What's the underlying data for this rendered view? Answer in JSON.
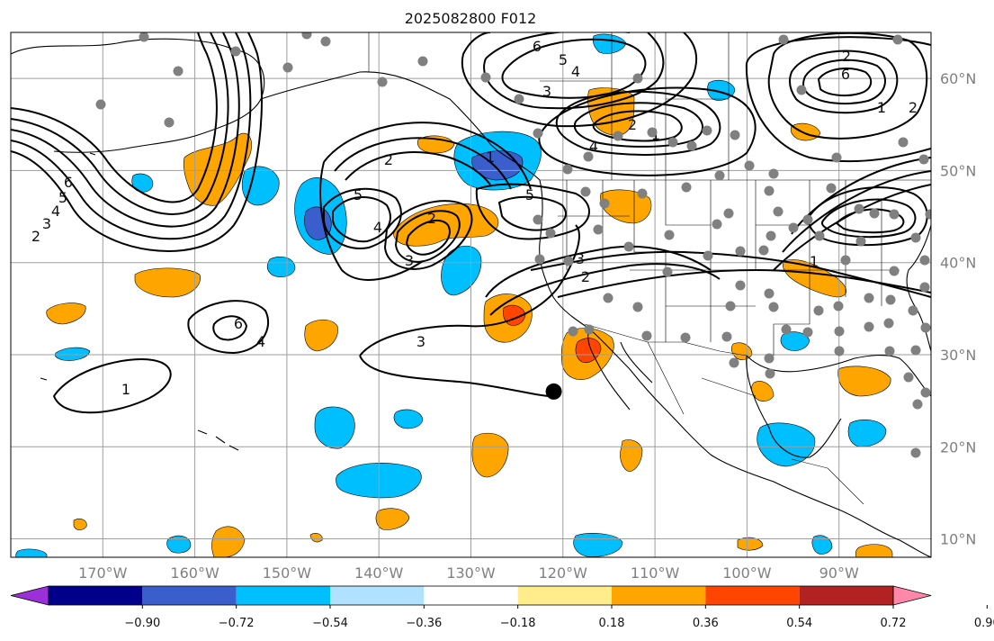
{
  "title": "2025082800 F012",
  "map": {
    "lat_labels": [
      "60°N",
      "50°N",
      "40°N",
      "30°N",
      "20°N",
      "10°N"
    ],
    "lat_values": [
      60,
      50,
      40,
      30,
      20,
      10
    ],
    "lon_labels": [
      "170°W",
      "160°W",
      "150°W",
      "140°W",
      "130°W",
      "120°W",
      "110°W",
      "100°W",
      "90°W"
    ],
    "lon_values": [
      -170,
      -160,
      -150,
      -140,
      -130,
      -120,
      -110,
      -100,
      -90
    ],
    "lat_range": [
      8,
      65
    ],
    "lon_range": [
      -180,
      -80
    ],
    "grid": true,
    "contour_labels": [
      "6",
      "5",
      "4",
      "3",
      "2",
      "1",
      "6",
      "4",
      "3",
      "2",
      "5",
      "4",
      "3",
      "2",
      "1",
      "6",
      "5",
      "4",
      "3",
      "2",
      "1",
      "4",
      "5",
      "3",
      "2",
      "6",
      "2",
      "1",
      "2",
      "1"
    ],
    "marker": {
      "lat": 26,
      "lon": -121,
      "color": "#000000"
    }
  },
  "colorbar": {
    "tick_labels": [
      "−0.90",
      "−0.72",
      "−0.54",
      "−0.36",
      "−0.18",
      "0.18",
      "0.36",
      "0.54",
      "0.72",
      "0.90"
    ],
    "colors": [
      "#9b30d9",
      "#00008b",
      "#3a5fcd",
      "#00bfff",
      "#b0e2ff",
      "#ffffff",
      "#ffec8b",
      "#ffa500",
      "#ff4500",
      "#b22222",
      "#ff88aa"
    ]
  }
}
